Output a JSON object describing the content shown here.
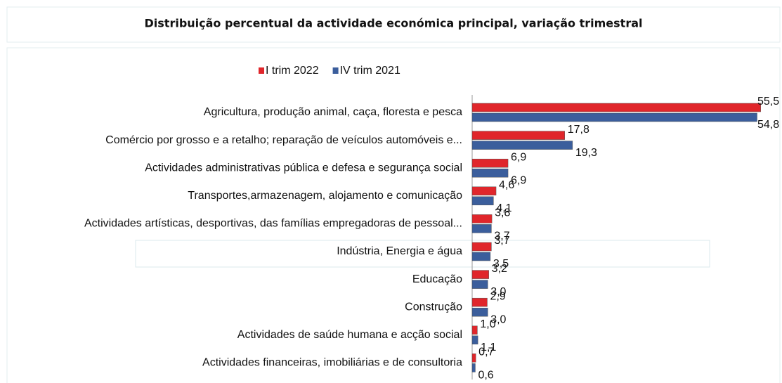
{
  "chart_data": {
    "type": "bar",
    "orientation": "horizontal",
    "title": "Distribuição percentual da actividade económica principal, variação trimestral",
    "categories": [
      "Agricultura, produção animal, caça, floresta e pesca",
      "Comércio por grosso e a retalho; reparação de veículos automóveis e...",
      "Actividades administrativas pública e defesa e segurança social",
      "Transportes,armazenagem, alojamento e comunicação",
      "Actividades artísticas, desportivas, das famílias empregadoras de pessoal...",
      "Indústria, Energia e água",
      "Educação",
      "Construção",
      "Actividades de saúde humana e acção social",
      "Actividades financeiras, imobiliárias e de consultoria"
    ],
    "series": [
      {
        "name": "I trim 2022",
        "color": "#e0262b",
        "values": [
          55.5,
          17.8,
          6.9,
          4.6,
          3.8,
          3.7,
          3.2,
          2.9,
          1.0,
          0.7
        ],
        "value_labels": [
          "55,5",
          "17,8",
          "6,9",
          "4,6",
          "3,8",
          "3,7",
          "3,2",
          "2,9",
          "1,0",
          "0,7"
        ]
      },
      {
        "name": "IV trim 2021",
        "color": "#3b5e9c",
        "values": [
          54.8,
          19.3,
          6.9,
          4.1,
          3.7,
          3.5,
          3.0,
          3.0,
          1.1,
          0.6
        ],
        "value_labels": [
          "54,8",
          "19,3",
          "6,9",
          "4,1",
          "3,7",
          "3,5",
          "3,0",
          "3,0",
          "1,1",
          "0,6"
        ]
      }
    ],
    "legend": "top"
  }
}
